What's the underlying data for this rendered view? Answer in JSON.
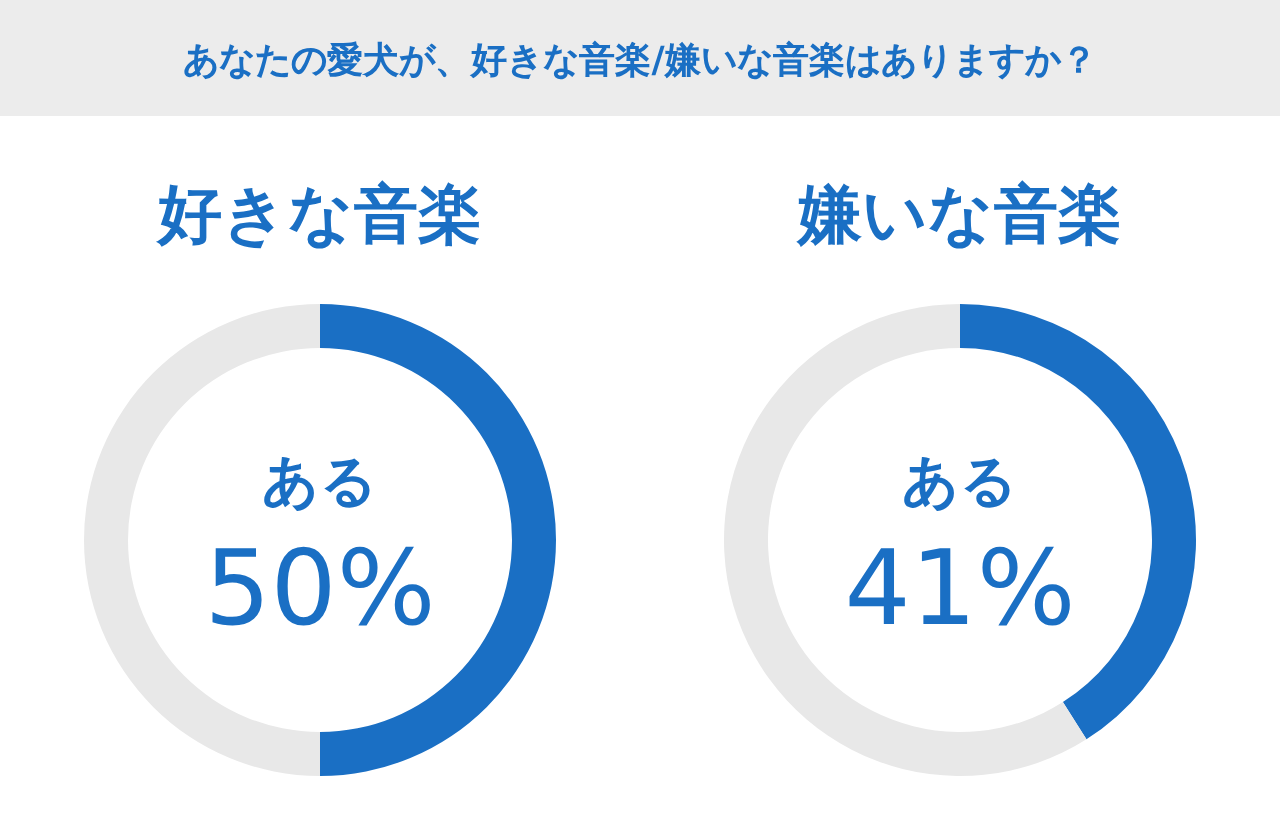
{
  "chart_data": [
    {
      "type": "other",
      "title": "あなたの愛犬が、好きな音楽/嫌いな音楽はありますか？"
    },
    {
      "type": "donut",
      "title": "好きな音楽",
      "categories": [
        "ある",
        null
      ],
      "values": [
        50,
        50
      ],
      "colors": [
        "#1a6fc4",
        "#e8e8e8"
      ],
      "value_labels": [
        "50%",
        null
      ]
    },
    {
      "type": "donut",
      "title": "嫌いな音楽",
      "categories": [
        "ある",
        null
      ],
      "values": [
        41,
        59
      ],
      "colors": [
        "#1a6fc4",
        "#e8e8e8"
      ],
      "value_labels": [
        "41%",
        null
      ]
    }
  ]
}
